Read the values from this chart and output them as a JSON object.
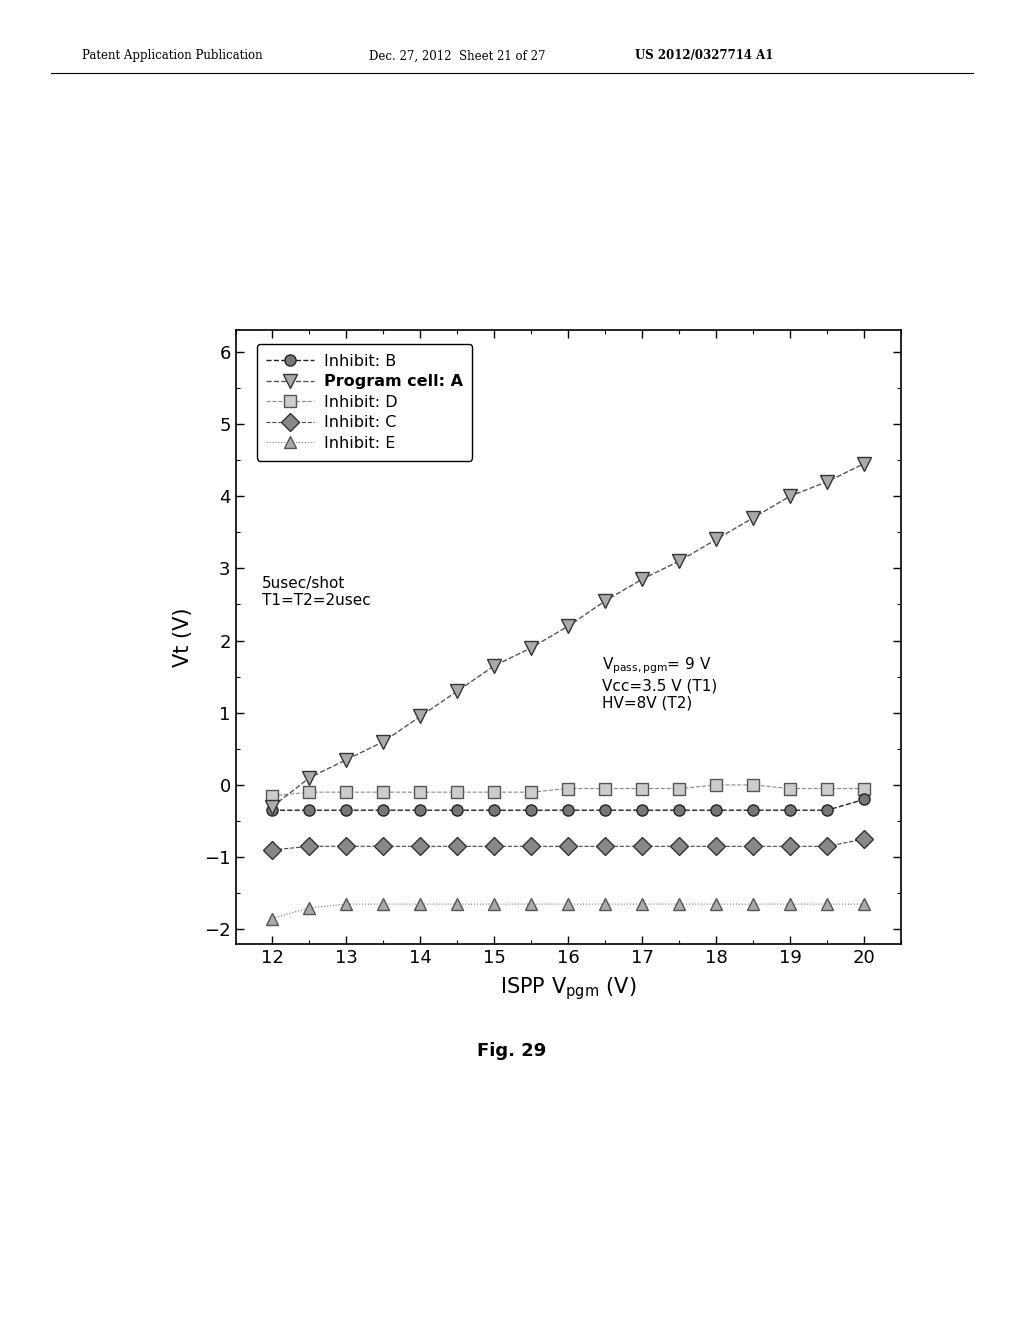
{
  "xlabel": "ISPP V$_\\mathregular{pgm}$ (V)",
  "ylabel": "Vt (V)",
  "xlim": [
    11.5,
    20.5
  ],
  "ylim": [
    -2.2,
    6.3
  ],
  "xticks": [
    12,
    13,
    14,
    15,
    16,
    17,
    18,
    19,
    20
  ],
  "yticks": [
    -2,
    -1,
    0,
    1,
    2,
    3,
    4,
    5,
    6
  ],
  "x": [
    12,
    12.5,
    13,
    13.5,
    14,
    14.5,
    15,
    15.5,
    16,
    16.5,
    17,
    17.5,
    18,
    18.5,
    19,
    19.5,
    20
  ],
  "inhibit_B": [
    -0.35,
    -0.35,
    -0.35,
    -0.35,
    -0.35,
    -0.35,
    -0.35,
    -0.35,
    -0.35,
    -0.35,
    -0.35,
    -0.35,
    -0.35,
    -0.35,
    -0.35,
    -0.35,
    -0.2
  ],
  "program_A": [
    -0.3,
    0.1,
    0.35,
    0.6,
    0.95,
    1.3,
    1.65,
    1.9,
    2.2,
    2.55,
    2.85,
    3.1,
    3.4,
    3.7,
    4.0,
    4.2,
    4.45
  ],
  "inhibit_D": [
    -0.15,
    -0.1,
    -0.1,
    -0.1,
    -0.1,
    -0.1,
    -0.1,
    -0.1,
    -0.05,
    -0.05,
    -0.05,
    -0.05,
    0.0,
    0.0,
    -0.05,
    -0.05,
    -0.05
  ],
  "inhibit_C": [
    -0.9,
    -0.85,
    -0.85,
    -0.85,
    -0.85,
    -0.85,
    -0.85,
    -0.85,
    -0.85,
    -0.85,
    -0.85,
    -0.85,
    -0.85,
    -0.85,
    -0.85,
    -0.85,
    -0.75
  ],
  "inhibit_E": [
    -1.85,
    -1.7,
    -1.65,
    -1.65,
    -1.65,
    -1.65,
    -1.65,
    -1.65,
    -1.65,
    -1.65,
    -1.65,
    -1.65,
    -1.65,
    -1.65,
    -1.65,
    -1.65,
    -1.65
  ],
  "annotation1": "5usec/shot\nT1=T2=2usec",
  "annotation2": "V$_\\mathregular{pass, pgm}$= 9 V\nVcc=3.5 V (T1)\nHV=8V (T2)",
  "fig_label": "Fig. 29",
  "background_color": "#ffffff"
}
